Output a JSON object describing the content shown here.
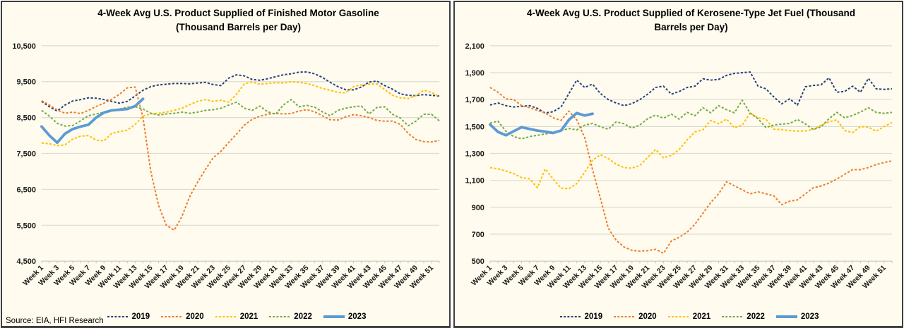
{
  "page": {
    "background": "#FFFFFF",
    "panel_background": "#FFFBEE",
    "panel_border_color": "#3F3F3F",
    "gridline_color": "#DCDCD2",
    "axis_line_color": "#C6C6BC",
    "axis_text_color": "#1A1A1A",
    "source_note": "Source: EIA, HFI Research"
  },
  "chart_data": [
    {
      "type": "line",
      "title": "4-Week Avg U.S. Product Supplied of Finished Motor Gasoline (Thousand Barrels per Day)",
      "title_lines": [
        "4-Week Avg U.S. Product Supplied of Finished Motor Gasoline",
        "(Thousand Barrels per Day)"
      ],
      "ylabel": "Thousand Barrels per Day",
      "ylim": [
        4500,
        10500
      ],
      "ytick_interval": 1000,
      "ytick_labels": [
        "4,500",
        "5,500",
        "6,500",
        "7,500",
        "8,500",
        "9,500",
        "10,500"
      ],
      "x_count": 52,
      "xtick_labels": [
        "Week 1",
        "Week 3",
        "Week 5",
        "Week 7",
        "Week 9",
        "Week 11",
        "Week 13",
        "Week 15",
        "Week 17",
        "Week 19",
        "Week 21",
        "Week 23",
        "Week 25",
        "Week 27",
        "Week 29",
        "Week 31",
        "Week 33",
        "Week 35",
        "Week 37",
        "Week 39",
        "Week 41",
        "Week 43",
        "Week 45",
        "Week 47",
        "Week 49",
        "Week 51"
      ],
      "grid": "horizontal",
      "legend_position": "bottom",
      "series": [
        {
          "name": "2019",
          "color": "#25417F",
          "line_style": "dashed",
          "line_width": 2,
          "values": [
            8950,
            8800,
            8680,
            8850,
            8960,
            9000,
            9050,
            9040,
            9000,
            8950,
            8900,
            8950,
            9100,
            9260,
            9360,
            9410,
            9430,
            9450,
            9450,
            9440,
            9460,
            9480,
            9420,
            9390,
            9600,
            9690,
            9660,
            9560,
            9540,
            9580,
            9640,
            9690,
            9720,
            9765,
            9770,
            9720,
            9620,
            9480,
            9360,
            9275,
            9270,
            9350,
            9490,
            9515,
            9390,
            9290,
            9160,
            9120,
            9110,
            9140,
            9120,
            9100
          ]
        },
        {
          "name": "2020",
          "color": "#ED7D31",
          "line_style": "dashed",
          "line_width": 2,
          "values": [
            8970,
            8850,
            8710,
            8620,
            8650,
            8610,
            8700,
            8810,
            8900,
            9010,
            9150,
            9330,
            9350,
            8500,
            7000,
            6050,
            5500,
            5360,
            5750,
            6300,
            6700,
            7050,
            7380,
            7560,
            7810,
            8040,
            8290,
            8450,
            8540,
            8590,
            8620,
            8600,
            8610,
            8680,
            8720,
            8660,
            8550,
            8440,
            8430,
            8520,
            8580,
            8550,
            8500,
            8420,
            8400,
            8400,
            8310,
            8060,
            7890,
            7830,
            7820,
            7860
          ]
        },
        {
          "name": "2021",
          "color": "#FFC000",
          "line_style": "dashed",
          "line_width": 2,
          "values": [
            7790,
            7770,
            7720,
            7740,
            7900,
            7980,
            8000,
            7870,
            7850,
            8060,
            8110,
            8150,
            8310,
            8540,
            8600,
            8620,
            8650,
            8700,
            8760,
            8860,
            8950,
            9000,
            8950,
            8980,
            8930,
            9150,
            9440,
            9490,
            9430,
            9450,
            9470,
            9460,
            9500,
            9480,
            9450,
            9390,
            9310,
            9260,
            9200,
            9190,
            9360,
            9410,
            9430,
            9440,
            9280,
            9120,
            9050,
            9030,
            9110,
            9260,
            9200,
            9090
          ]
        },
        {
          "name": "2022",
          "color": "#70AD47",
          "line_style": "dashed",
          "line_width": 2,
          "values": [
            8700,
            8540,
            8340,
            8260,
            8280,
            8410,
            8550,
            8600,
            8650,
            8700,
            8740,
            8790,
            8800,
            8740,
            8620,
            8570,
            8600,
            8620,
            8650,
            8620,
            8650,
            8700,
            8720,
            8760,
            8850,
            8930,
            8760,
            8700,
            8820,
            8660,
            8590,
            8850,
            9000,
            8800,
            8840,
            8790,
            8660,
            8550,
            8700,
            8760,
            8800,
            8820,
            8600,
            8780,
            8800,
            8590,
            8490,
            8270,
            8400,
            8590,
            8590,
            8410
          ]
        },
        {
          "name": "2023",
          "color": "#5B9BD5",
          "line_style": "solid",
          "line_width": 3.8,
          "values": [
            8250,
            8000,
            7800,
            8050,
            8180,
            8250,
            8300,
            8500,
            8640,
            8700,
            8720,
            8740,
            8820,
            9020,
            null,
            null,
            null,
            null,
            null,
            null,
            null,
            null,
            null,
            null,
            null,
            null,
            null,
            null,
            null,
            null,
            null,
            null,
            null,
            null,
            null,
            null,
            null,
            null,
            null,
            null,
            null,
            null,
            null,
            null,
            null,
            null,
            null,
            null,
            null,
            null,
            null,
            null
          ]
        }
      ]
    },
    {
      "type": "line",
      "title": "4-Week Avg U.S. Product Supplied of Kerosene-Type Jet Fuel  (Thousand Barrels per Day)",
      "title_lines": [
        "4-Week Avg U.S. Product Supplied of Kerosene-Type Jet Fuel  (Thousand",
        "Barrels per Day)"
      ],
      "ylabel": "Thousand Barrels per Day",
      "ylim": [
        500,
        2100
      ],
      "ytick_interval": 200,
      "ytick_labels": [
        "500",
        "700",
        "900",
        "1,100",
        "1,300",
        "1,500",
        "1,700",
        "1,900",
        "2,100"
      ],
      "x_count": 52,
      "xtick_labels": [
        "Week 1",
        "Week 3",
        "Week 5",
        "Week 7",
        "Week 9",
        "Week 11",
        "Week 13",
        "Week 15",
        "Week 17",
        "Week 19",
        "Week 21",
        "Week 23",
        "Week 25",
        "Week 27",
        "Week 29",
        "Week 31",
        "Week 33",
        "Week 35",
        "Week 37",
        "Week 39",
        "Week 41",
        "Week 43",
        "Week 45",
        "Week 47",
        "Week 49",
        "Week 51"
      ],
      "grid": "horizontal",
      "legend_position": "bottom",
      "series": [
        {
          "name": "2019",
          "color": "#25417F",
          "line_style": "dashed",
          "line_width": 2,
          "values": [
            1660,
            1675,
            1655,
            1645,
            1650,
            1655,
            1635,
            1600,
            1610,
            1645,
            1745,
            1845,
            1790,
            1815,
            1745,
            1700,
            1675,
            1655,
            1670,
            1700,
            1740,
            1790,
            1800,
            1740,
            1760,
            1790,
            1800,
            1855,
            1845,
            1850,
            1880,
            1895,
            1900,
            1905,
            1800,
            1780,
            1720,
            1668,
            1705,
            1660,
            1795,
            1805,
            1810,
            1862,
            1755,
            1760,
            1800,
            1755,
            1858,
            1780,
            1776,
            1780
          ]
        },
        {
          "name": "2020",
          "color": "#ED7D31",
          "line_style": "dashed",
          "line_width": 2,
          "values": [
            1790,
            1755,
            1705,
            1700,
            1655,
            1640,
            1620,
            1600,
            1565,
            1545,
            1615,
            1550,
            1420,
            1180,
            965,
            745,
            655,
            605,
            580,
            575,
            578,
            588,
            558,
            650,
            678,
            715,
            775,
            855,
            935,
            1000,
            1090,
            1060,
            1030,
            1000,
            1015,
            1000,
            985,
            920,
            945,
            955,
            1000,
            1045,
            1058,
            1080,
            1110,
            1145,
            1180,
            1180,
            1195,
            1218,
            1232,
            1245
          ]
        },
        {
          "name": "2021",
          "color": "#FFC000",
          "line_style": "dashed",
          "line_width": 2,
          "values": [
            1195,
            1185,
            1170,
            1150,
            1120,
            1112,
            1045,
            1185,
            1110,
            1042,
            1038,
            1075,
            1160,
            1250,
            1290,
            1262,
            1220,
            1195,
            1190,
            1210,
            1270,
            1330,
            1268,
            1285,
            1330,
            1400,
            1460,
            1475,
            1545,
            1520,
            1555,
            1490,
            1510,
            1600,
            1565,
            1555,
            1480,
            1478,
            1470,
            1465,
            1468,
            1478,
            1510,
            1535,
            1550,
            1470,
            1455,
            1500,
            1495,
            1465,
            1500,
            1530
          ]
        },
        {
          "name": "2022",
          "color": "#70AD47",
          "line_style": "dashed",
          "line_width": 2,
          "values": [
            1525,
            1540,
            1465,
            1425,
            1408,
            1425,
            1435,
            1445,
            1452,
            1470,
            1485,
            1475,
            1510,
            1523,
            1498,
            1480,
            1535,
            1520,
            1488,
            1512,
            1558,
            1585,
            1562,
            1592,
            1555,
            1605,
            1580,
            1640,
            1602,
            1655,
            1625,
            1602,
            1695,
            1600,
            1558,
            1492,
            1512,
            1518,
            1522,
            1552,
            1520,
            1478,
            1498,
            1558,
            1605,
            1565,
            1582,
            1608,
            1640,
            1605,
            1598,
            1605
          ]
        },
        {
          "name": "2023",
          "color": "#5B9BD5",
          "line_style": "solid",
          "line_width": 3.8,
          "values": [
            1515,
            1460,
            1435,
            1465,
            1495,
            1482,
            1470,
            1462,
            1452,
            1470,
            1550,
            1600,
            1582,
            1595,
            null,
            null,
            null,
            null,
            null,
            null,
            null,
            null,
            null,
            null,
            null,
            null,
            null,
            null,
            null,
            null,
            null,
            null,
            null,
            null,
            null,
            null,
            null,
            null,
            null,
            null,
            null,
            null,
            null,
            null,
            null,
            null,
            null,
            null,
            null,
            null,
            null,
            null
          ]
        }
      ]
    }
  ]
}
